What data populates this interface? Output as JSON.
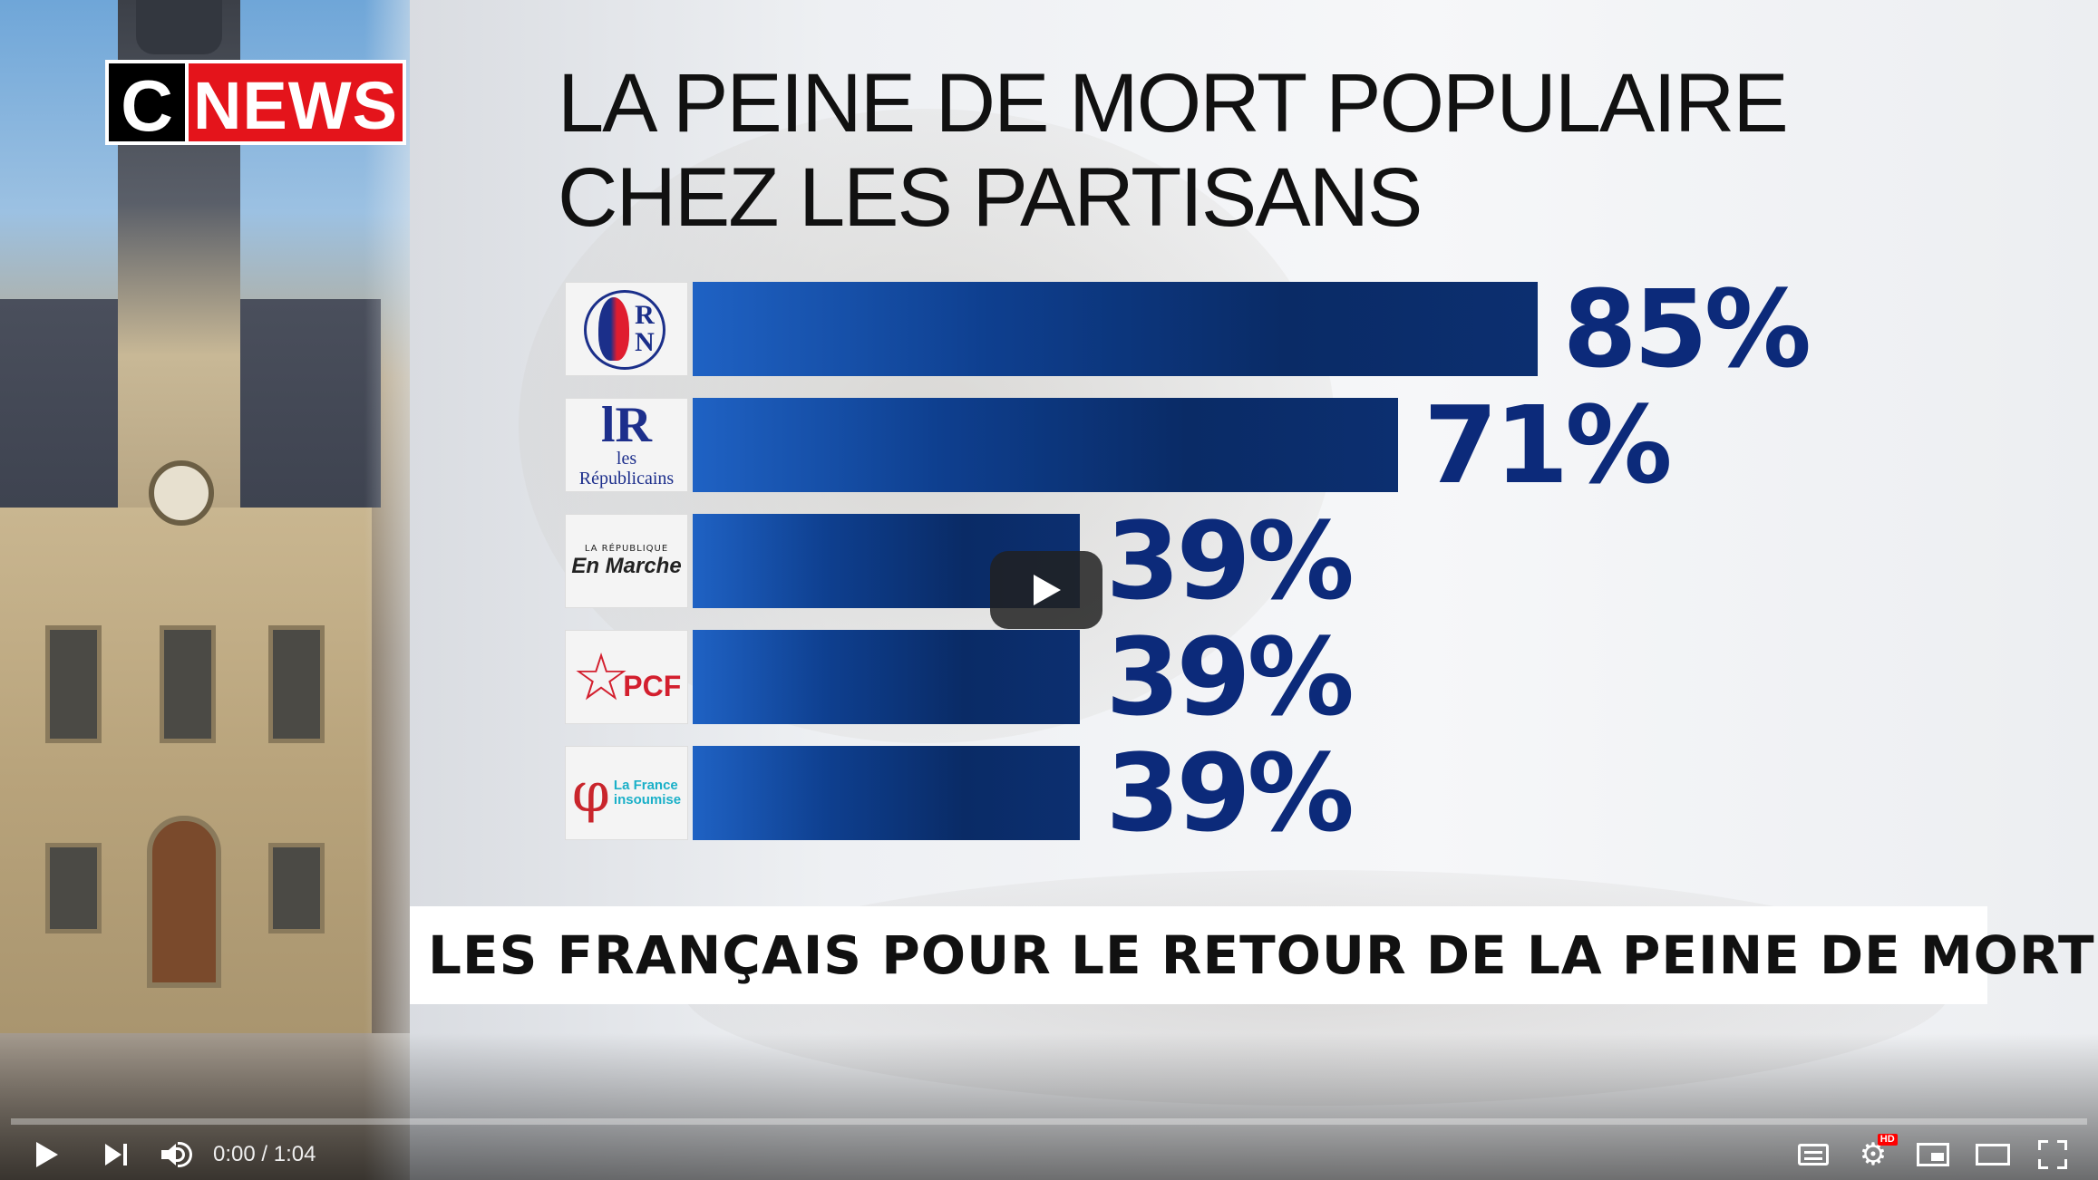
{
  "channel_logo": {
    "c": "C",
    "news": "NEWS"
  },
  "title": {
    "line1": "LA PEINE DE MORT POPULAIRE",
    "line2": "CHEZ LES PARTISANS"
  },
  "chart_data": {
    "type": "bar",
    "orientation": "horizontal",
    "title": "LA PEINE DE MORT POPULAIRE CHEZ LES PARTISANS",
    "categories": [
      "RN",
      "Les Républicains",
      "La République En Marche",
      "PCF",
      "La France insoumise"
    ],
    "values": [
      85,
      71,
      39,
      39,
      39
    ],
    "labels": [
      "85%",
      "71%",
      "39%",
      "39%",
      "39%"
    ],
    "unit": "%",
    "bar_color": "#0e3f8f",
    "label_color": "#0c2a7a"
  },
  "party_logos": {
    "rn": {
      "r": "R",
      "n": "N"
    },
    "lr": {
      "mark": "lR",
      "prefix": "les",
      "name": "Républicains"
    },
    "lrem": {
      "top": "LA RÉPUBLIQUE",
      "main": "En Marche"
    },
    "pcf": {
      "star": "☆",
      "text": "PCF"
    },
    "lfi": {
      "phi": "φ",
      "line1": "La France",
      "line2": "insoumise"
    }
  },
  "banner": {
    "text": "LES FRANÇAIS POUR LE RETOUR DE LA PEINE DE MORT"
  },
  "player": {
    "time_current": "0:00",
    "time_total": "1:04",
    "time_display": "0:00 / 1:04",
    "progress": 0,
    "hd_badge": "HD",
    "accent_color": "#ff0000",
    "icons": [
      "play-icon",
      "next-icon",
      "volume-icon",
      "captions-icon",
      "settings-icon",
      "miniplayer-icon",
      "theater-icon",
      "fullscreen-icon"
    ]
  }
}
